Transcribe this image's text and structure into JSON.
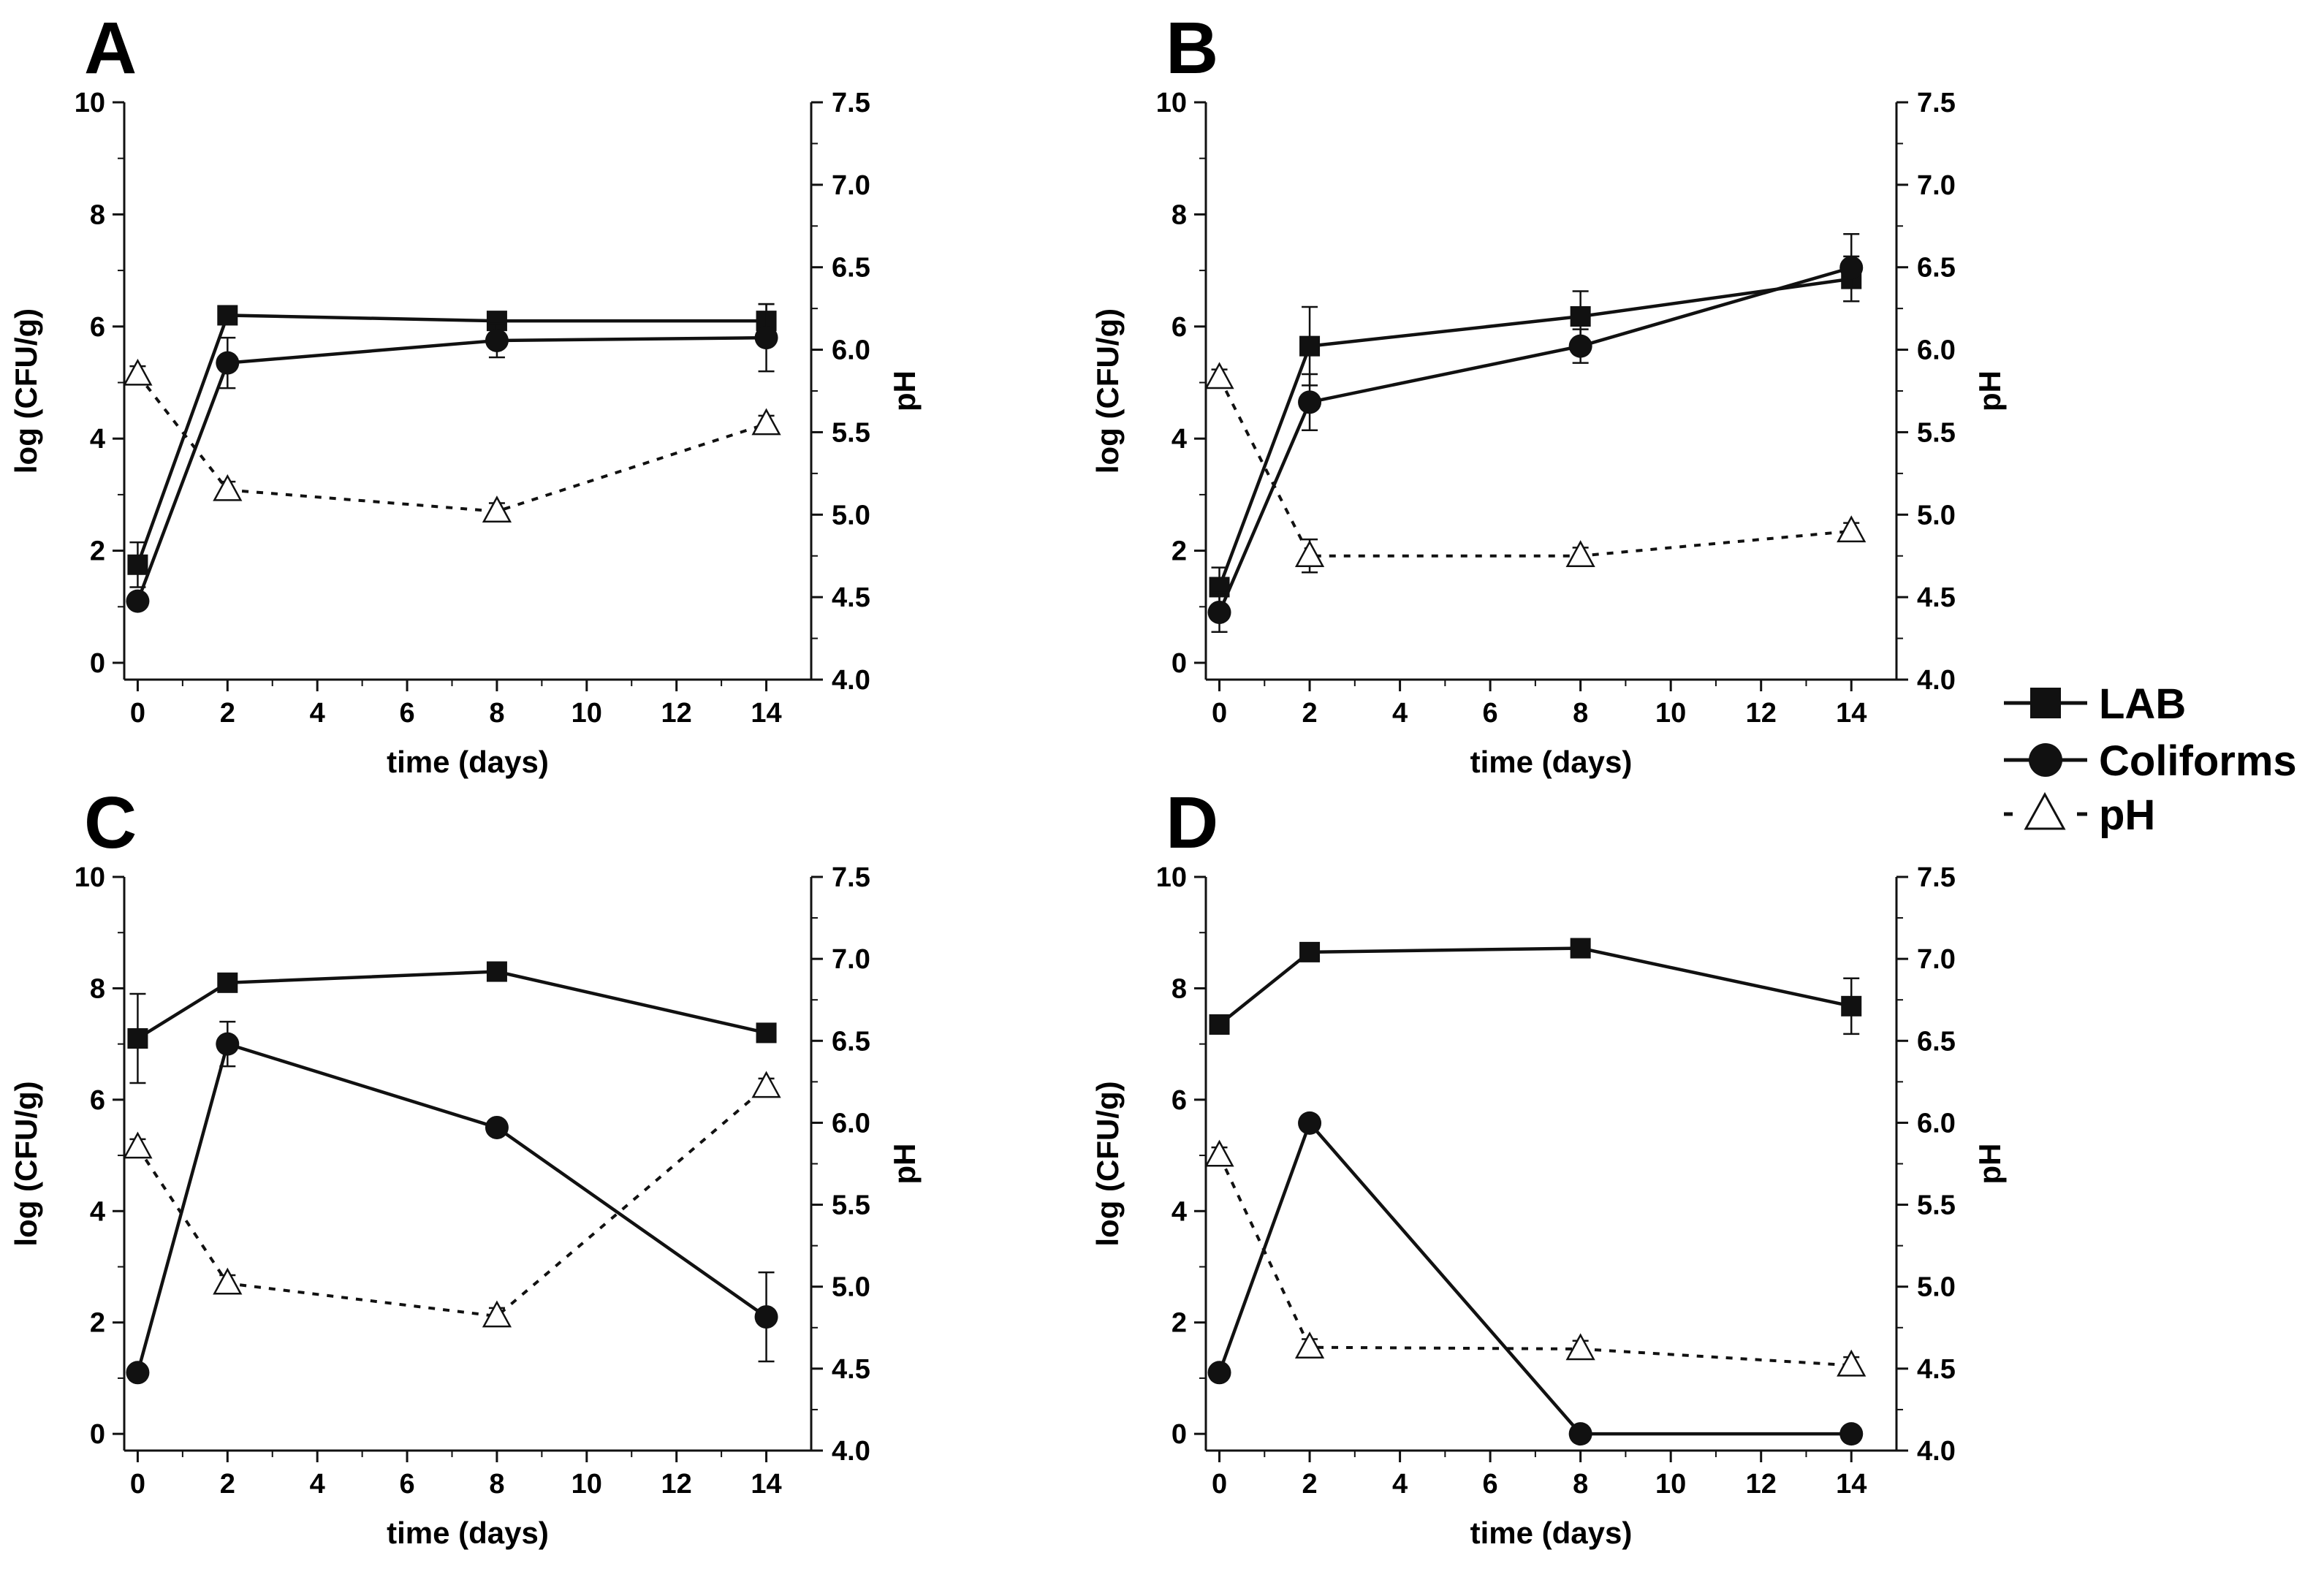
{
  "legend": [
    {
      "label": "LAB",
      "marker": "square",
      "line": "solid"
    },
    {
      "label": "Coliforms",
      "marker": "circle",
      "line": "solid"
    },
    {
      "label": "pH",
      "marker": "triangle-open",
      "line": "dotted"
    }
  ],
  "chart_data": [
    {
      "panel": "A",
      "type": "line",
      "xlabel": "time (days)",
      "ylabel": "log (CFU/g)",
      "y2label": "pH",
      "x_ticks": [
        0,
        2,
        4,
        6,
        8,
        10,
        12,
        14
      ],
      "y_ticks": [
        0,
        2,
        4,
        6,
        8,
        10
      ],
      "y2_ticks": [
        "4.0",
        "4.5",
        "5.0",
        "5.5",
        "6.0",
        "6.5",
        "7.0",
        "7.5"
      ],
      "xlim": [
        -0.3,
        15
      ],
      "ylim": [
        -0.3,
        10
      ],
      "y2lim": [
        4.0,
        7.5
      ],
      "series": [
        {
          "name": "LAB",
          "axis": "left",
          "x": [
            0,
            2,
            8,
            14
          ],
          "values": [
            1.75,
            6.2,
            6.1,
            6.1
          ],
          "errors": [
            0.4,
            0.1,
            0.1,
            0.3
          ]
        },
        {
          "name": "Coliforms",
          "axis": "left",
          "x": [
            0,
            2,
            8,
            14
          ],
          "values": [
            1.1,
            5.35,
            5.75,
            5.8
          ],
          "errors": [
            0,
            0.45,
            0.3,
            0.6
          ]
        },
        {
          "name": "pH",
          "axis": "right",
          "x": [
            0,
            2,
            8,
            14
          ],
          "values": [
            5.85,
            5.15,
            5.02,
            5.55
          ],
          "errors": [
            0.05,
            0.05,
            0.05,
            0.05
          ]
        }
      ]
    },
    {
      "panel": "B",
      "type": "line",
      "xlabel": "time (days)",
      "ylabel": "log (CFU/g)",
      "y2label": "pH",
      "x_ticks": [
        0,
        2,
        4,
        6,
        8,
        10,
        12,
        14
      ],
      "y_ticks": [
        0,
        2,
        4,
        6,
        8,
        10
      ],
      "y2_ticks": [
        "4.0",
        "4.5",
        "5.0",
        "5.5",
        "6.0",
        "6.5",
        "7.0",
        "7.5"
      ],
      "xlim": [
        -0.3,
        15
      ],
      "ylim": [
        -0.3,
        10
      ],
      "y2lim": [
        4.0,
        7.5
      ],
      "series": [
        {
          "name": "LAB",
          "axis": "left",
          "x": [
            0,
            2,
            8,
            14
          ],
          "values": [
            1.35,
            5.65,
            6.18,
            6.85
          ],
          "errors": [
            0.35,
            0.7,
            0.45,
            0.4
          ]
        },
        {
          "name": "Coliforms",
          "axis": "left",
          "x": [
            0,
            2,
            8,
            14
          ],
          "values": [
            0.9,
            4.65,
            5.65,
            7.05
          ],
          "errors": [
            0.35,
            0.5,
            0.3,
            0.6
          ]
        },
        {
          "name": "pH",
          "axis": "right",
          "x": [
            0,
            2,
            8,
            14
          ],
          "values": [
            5.83,
            4.75,
            4.75,
            4.9
          ],
          "errors": [
            0.05,
            0.1,
            0.05,
            0.05
          ]
        }
      ]
    },
    {
      "panel": "C",
      "type": "line",
      "xlabel": "time (days)",
      "ylabel": "log (CFU/g)",
      "y2label": "pH",
      "x_ticks": [
        0,
        2,
        4,
        6,
        8,
        10,
        12,
        14
      ],
      "y_ticks": [
        0,
        2,
        4,
        6,
        8,
        10
      ],
      "y2_ticks": [
        "4.0",
        "4.5",
        "5.0",
        "5.5",
        "6.0",
        "6.5",
        "7.0",
        "7.5"
      ],
      "xlim": [
        -0.3,
        15
      ],
      "ylim": [
        -0.3,
        10
      ],
      "y2lim": [
        4.0,
        7.5
      ],
      "series": [
        {
          "name": "LAB",
          "axis": "left",
          "x": [
            0,
            2,
            8,
            14
          ],
          "values": [
            7.1,
            8.1,
            8.3,
            7.2
          ],
          "errors": [
            0.8,
            0.05,
            0.05,
            0.05
          ]
        },
        {
          "name": "Coliforms",
          "axis": "left",
          "x": [
            0,
            2,
            8,
            14
          ],
          "values": [
            1.1,
            7.0,
            5.5,
            2.1
          ],
          "errors": [
            0,
            0.4,
            0.05,
            0.8
          ]
        },
        {
          "name": "pH",
          "axis": "right",
          "x": [
            0,
            2,
            8,
            14
          ],
          "values": [
            5.85,
            5.02,
            4.82,
            6.22
          ],
          "errors": [
            0.05,
            0.05,
            0.05,
            0.05
          ]
        }
      ]
    },
    {
      "panel": "D",
      "type": "line",
      "xlabel": "time (days)",
      "ylabel": "log (CFU/g)",
      "y2label": "pH",
      "x_ticks": [
        0,
        2,
        4,
        6,
        8,
        10,
        12,
        14
      ],
      "y_ticks": [
        0,
        2,
        4,
        6,
        8,
        10
      ],
      "y2_ticks": [
        "4.0",
        "4.5",
        "5.0",
        "5.5",
        "6.0",
        "6.5",
        "7.0",
        "7.5"
      ],
      "xlim": [
        -0.3,
        15
      ],
      "ylim": [
        -0.3,
        10
      ],
      "y2lim": [
        4.0,
        7.5
      ],
      "series": [
        {
          "name": "LAB",
          "axis": "left",
          "x": [
            0,
            2,
            8,
            14
          ],
          "values": [
            7.35,
            8.65,
            8.72,
            7.68
          ],
          "errors": [
            0.05,
            0.05,
            0.05,
            0.5
          ]
        },
        {
          "name": "Coliforms",
          "axis": "left",
          "x": [
            0,
            2,
            8,
            14
          ],
          "values": [
            1.1,
            5.58,
            0,
            0
          ],
          "errors": [
            0,
            0.05,
            0,
            0
          ]
        },
        {
          "name": "pH",
          "axis": "right",
          "x": [
            0,
            2,
            8,
            14
          ],
          "values": [
            5.8,
            4.63,
            4.62,
            4.52
          ],
          "errors": [
            0.05,
            0.05,
            0.05,
            0.05
          ]
        }
      ]
    }
  ]
}
